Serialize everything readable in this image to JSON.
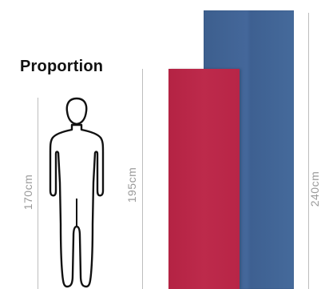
{
  "title": "Proportion",
  "measurements": {
    "person_height": "170cm",
    "panel_red_height": "195cm",
    "panel_blue_height": "240cm"
  },
  "colors": {
    "panel_red": "#b82547",
    "panel_blue": "#41649a",
    "dimension_line": "#bdbdbd",
    "label_text": "#9a9a9a"
  },
  "icons": [
    "person-silhouette-icon"
  ]
}
